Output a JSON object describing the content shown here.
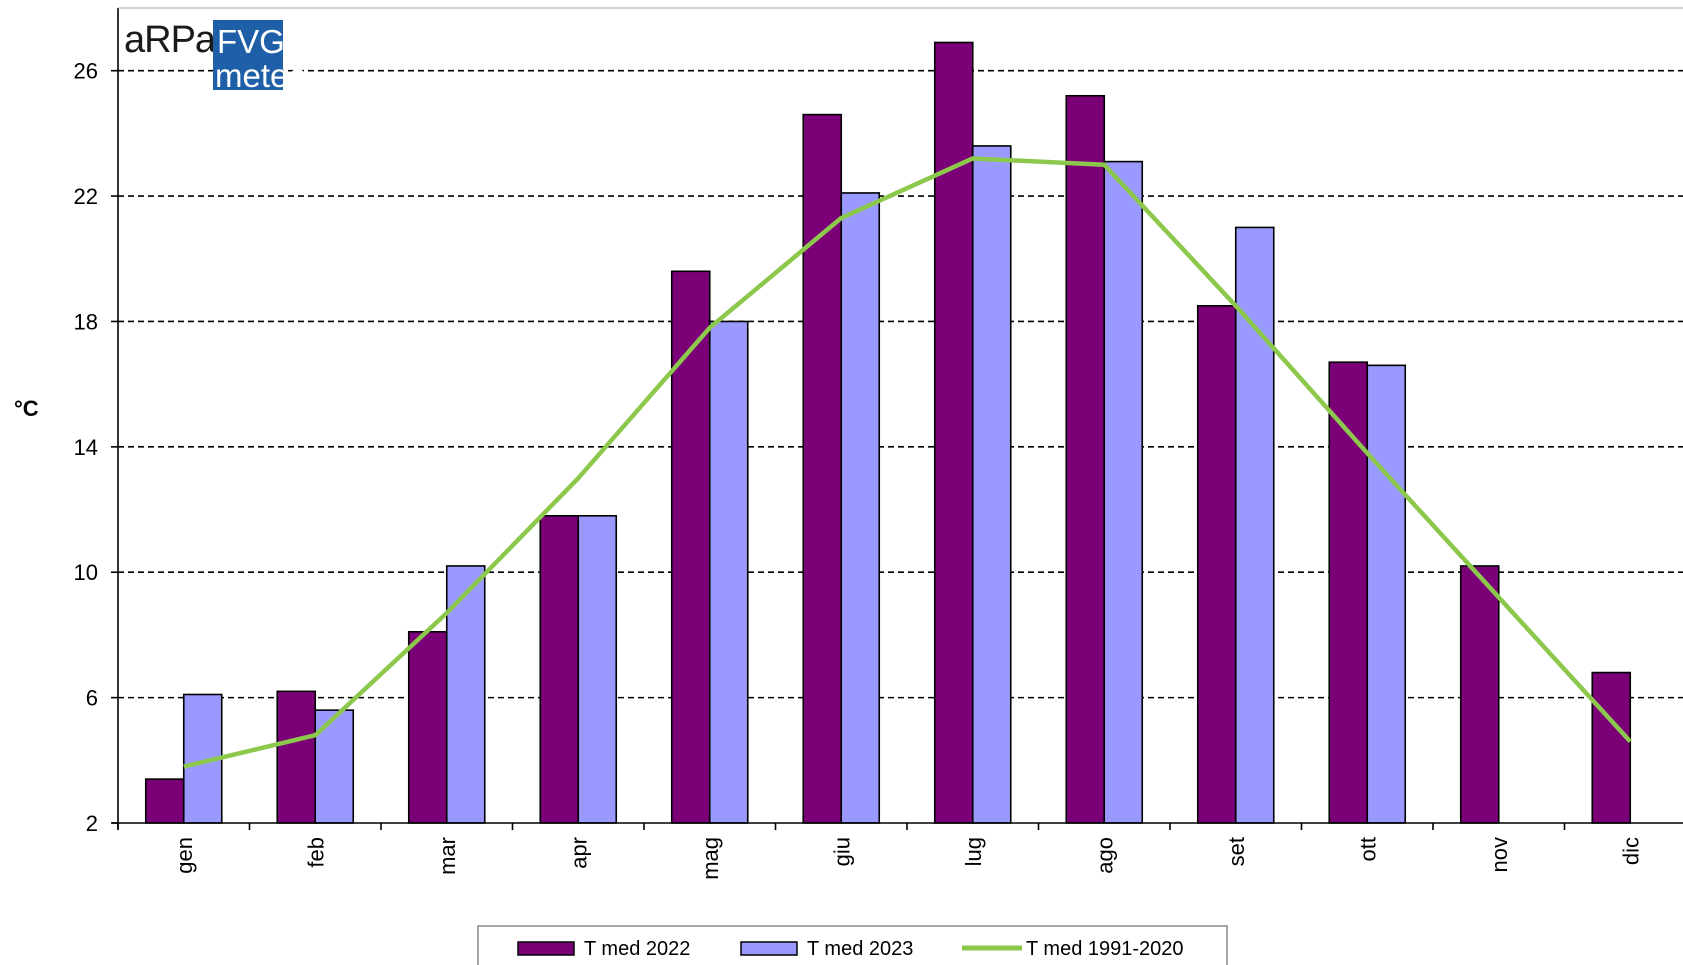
{
  "logo": {
    "left_text": "aRPa",
    "box_top": "FVG",
    "box_bottom": "meteo",
    "brand_color": "#1f5fa8"
  },
  "chart_data": {
    "type": "bar",
    "title": "",
    "xlabel": "",
    "ylabel": "°C",
    "ylim": [
      2,
      28
    ],
    "yticks": [
      2,
      6,
      10,
      14,
      18,
      22,
      26
    ],
    "grid": true,
    "legend_position": "bottom-center",
    "categories": [
      "gen",
      "feb",
      "mar",
      "apr",
      "mag",
      "giu",
      "lug",
      "ago",
      "set",
      "ott",
      "nov",
      "dic"
    ],
    "series": [
      {
        "name": "T med 2022",
        "kind": "bar",
        "color": "#7b0078",
        "values": [
          3.4,
          6.2,
          8.1,
          11.8,
          19.6,
          24.6,
          26.9,
          25.2,
          18.5,
          16.7,
          10.2,
          6.8
        ]
      },
      {
        "name": "T med 2023",
        "kind": "bar",
        "color": "#9999ff",
        "values": [
          6.1,
          5.6,
          10.2,
          11.8,
          18.0,
          22.1,
          23.6,
          23.1,
          21.0,
          16.6,
          null,
          null
        ]
      },
      {
        "name": "T med 1991-2020",
        "kind": "line",
        "color": "#8cc84b",
        "values": [
          3.8,
          4.8,
          8.7,
          13.0,
          17.8,
          21.3,
          23.2,
          23.0,
          18.5,
          13.8,
          9.2,
          4.6
        ]
      }
    ]
  }
}
